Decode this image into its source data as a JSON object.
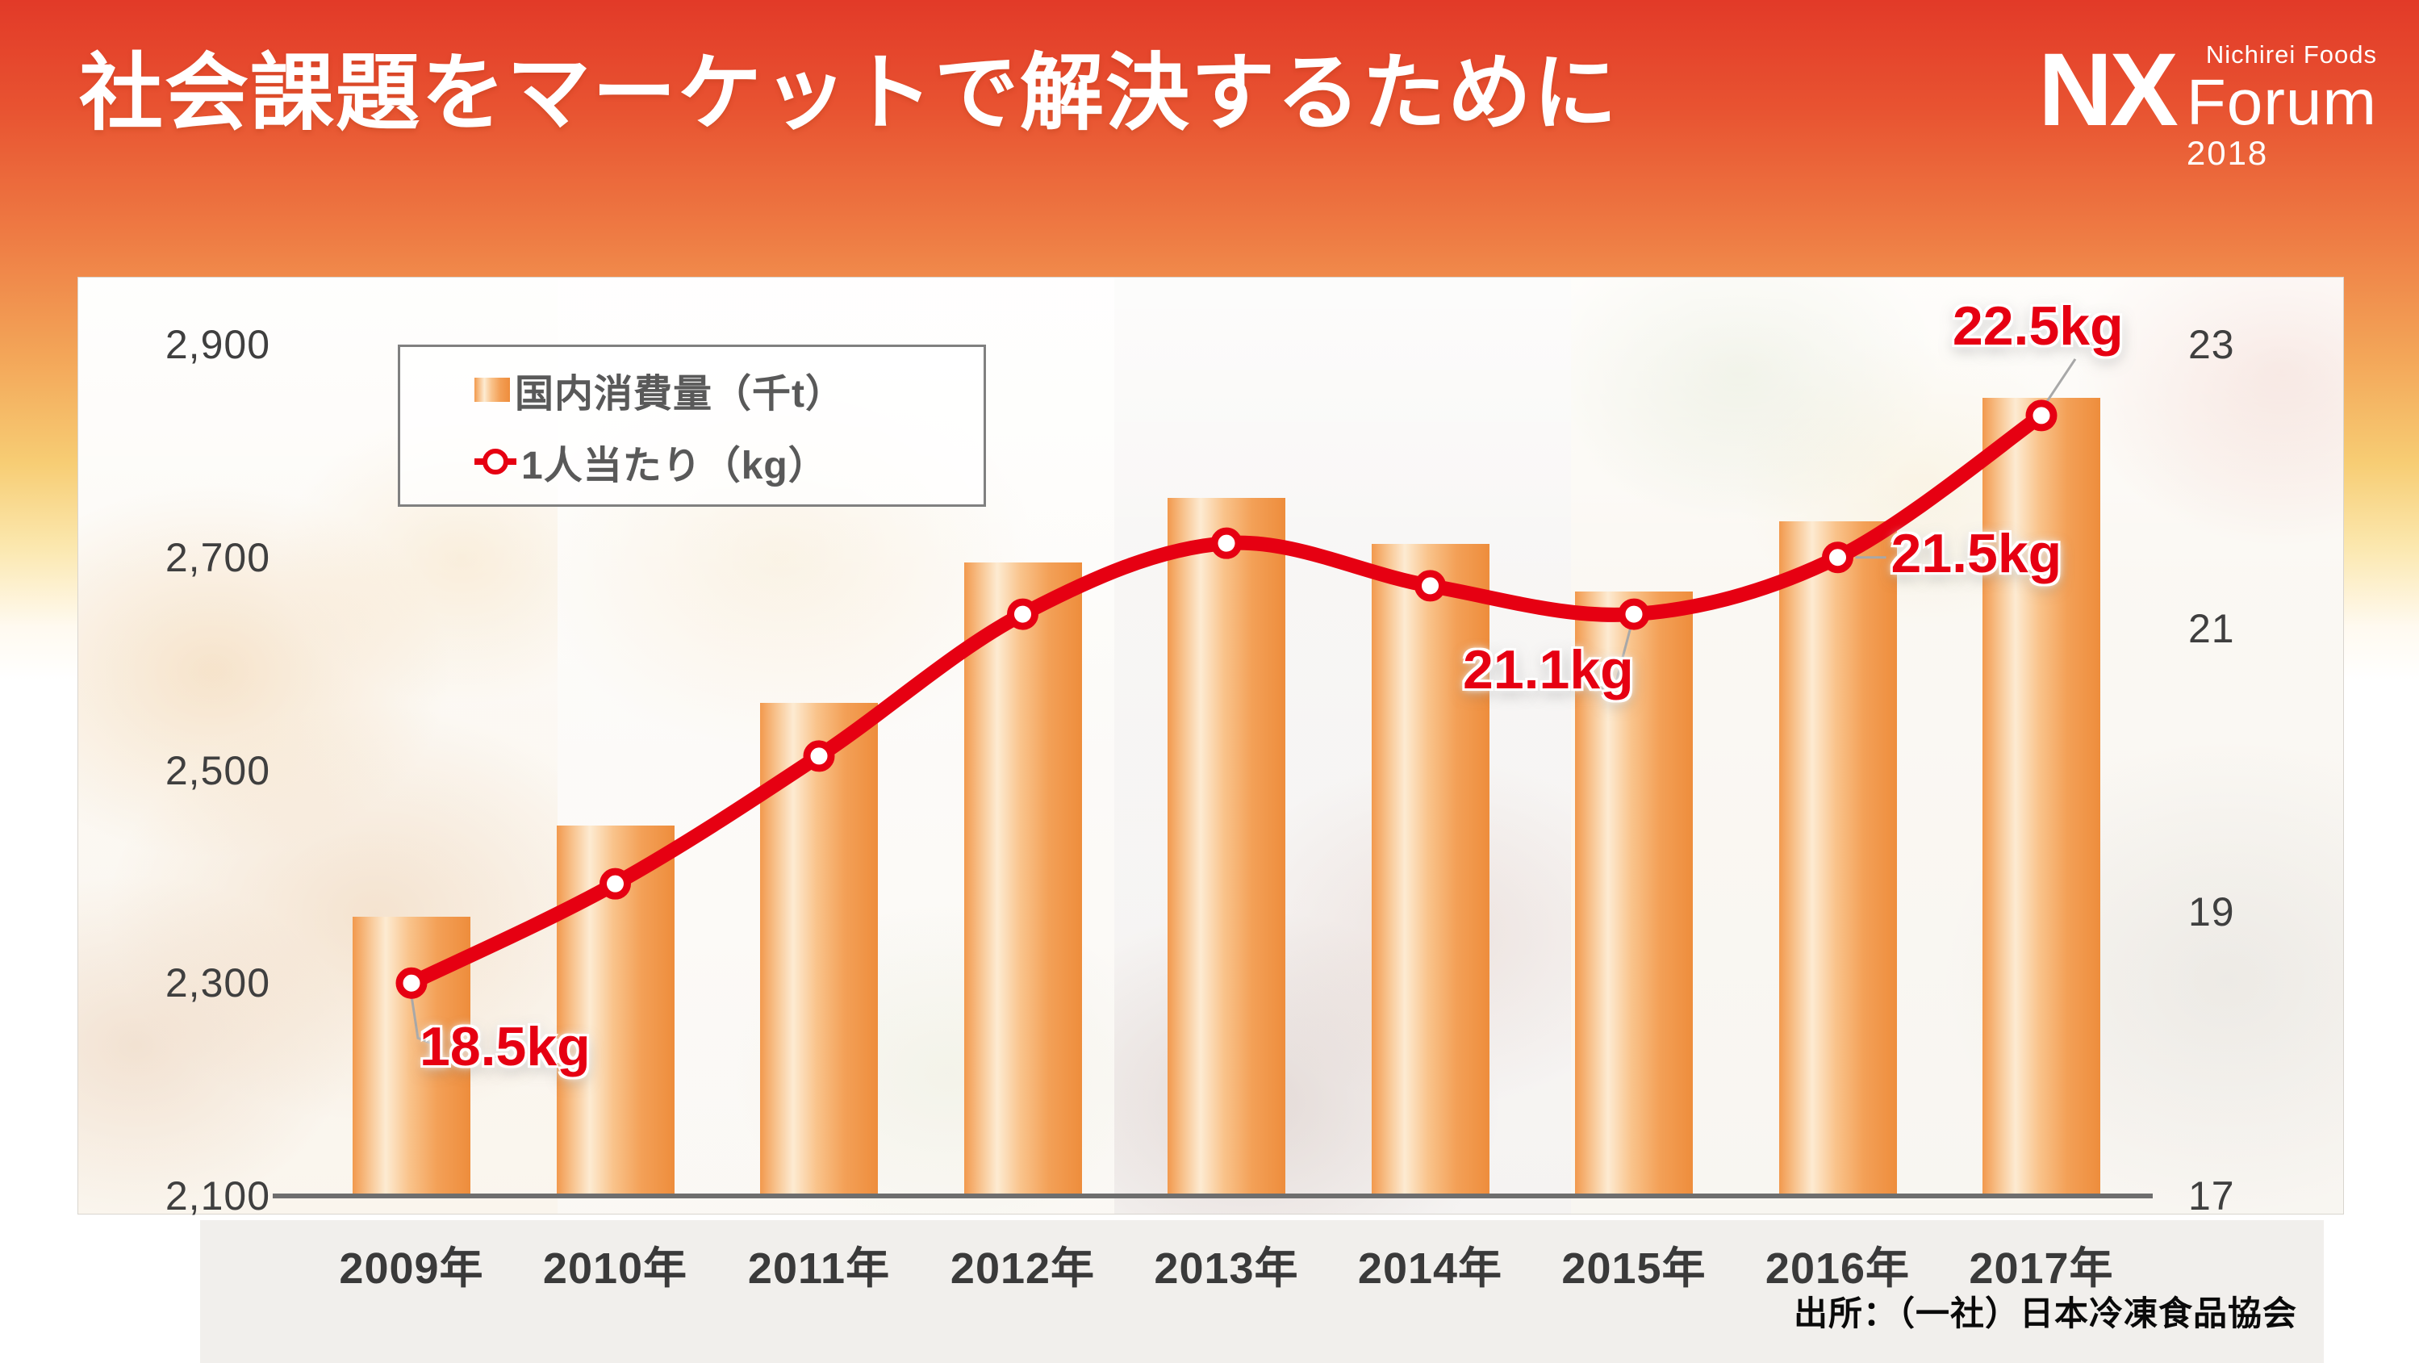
{
  "title": "社会課題をマーケットで解決するために",
  "logo": {
    "nx": "NX",
    "brand": "Nichirei Foods",
    "forum": "Forum",
    "year": "2018"
  },
  "legend": {
    "items": [
      {
        "label": "国内消費量（千t）",
        "marker": "bar-swatch"
      },
      {
        "label": "1人当たり（kg）",
        "marker": "line-marker"
      }
    ]
  },
  "source": "出所：（一社）日本冷凍食品協会",
  "colors": {
    "line_red": "#e60012",
    "axis_text": "#3f3f3f",
    "axis_line": "#6e6e6e",
    "banner_gradient": [
      "#e23a28 0%",
      "#e85331 8%",
      "#ee7a43 17%",
      "#f3a558 26%",
      "#f7cd74 34%",
      "#fbe7ad 40%",
      "#fffaf0 46%",
      "#ffffff 50%"
    ],
    "bar_gradient": [
      "#f2994d 0%",
      "#f8c490 14%",
      "#fdebd2 28%",
      "#f9c38b 48%",
      "#f3a057 72%",
      "#ee8d3c 100%"
    ]
  },
  "chart_data": {
    "type": "bar",
    "subtype": "combo-bar-line",
    "categories": [
      "2009年",
      "2010年",
      "2011年",
      "2012年",
      "2013年",
      "2014年",
      "2015年",
      "2016年",
      "2017年"
    ],
    "series": [
      {
        "name": "国内消費量（千t）",
        "type": "bar",
        "axis": "left",
        "values": [
          2362,
          2448,
          2563,
          2695,
          2756,
          2713,
          2668,
          2734,
          2850
        ]
      },
      {
        "name": "1人当たり（kg）",
        "type": "line",
        "axis": "right",
        "values": [
          18.5,
          19.2,
          20.1,
          21.1,
          21.6,
          21.3,
          21.1,
          21.5,
          22.5
        ],
        "point_labels": [
          {
            "index": 0,
            "text": "18.5kg",
            "placement": "below-right"
          },
          {
            "index": 6,
            "text": "21.1kg",
            "placement": "below-left"
          },
          {
            "index": 7,
            "text": "21.5kg",
            "placement": "right"
          },
          {
            "index": 8,
            "text": "22.5kg",
            "placement": "above"
          }
        ]
      }
    ],
    "left_axis": {
      "label": "国内消費量（千t）",
      "min": 2100,
      "max": 2900,
      "tick_labels": [
        "2,100",
        "2,300",
        "2,500",
        "2,700",
        "2,900"
      ]
    },
    "right_axis": {
      "label": "1人当たり（kg）",
      "min": 17,
      "max": 23,
      "tick_labels": [
        "17",
        "19",
        "21",
        "23"
      ]
    },
    "grid": false,
    "legend_position": "inside-top-left",
    "title": "",
    "xlabel": "",
    "ylabel": ""
  }
}
